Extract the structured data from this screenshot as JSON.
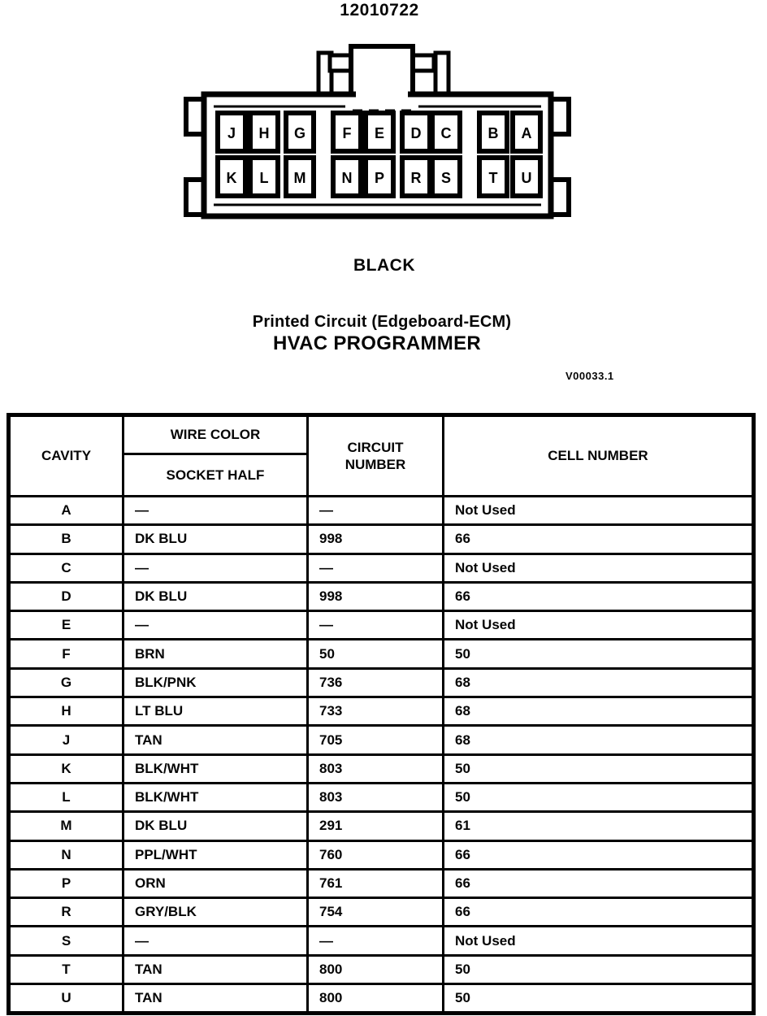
{
  "page": {
    "part_number": "12010722",
    "connector_color": "BLACK",
    "connector_type": "Printed Circuit (Edgeboard-ECM)",
    "connector_name": "HVAC PROGRAMMER",
    "figure_ref": "V00033.1"
  },
  "connector": {
    "top_row": [
      "J",
      "H",
      "G",
      "F",
      "E",
      "D",
      "C",
      "B",
      "A"
    ],
    "bottom_row": [
      "K",
      "L",
      "M",
      "N",
      "P",
      "R",
      "S",
      "T",
      "U"
    ]
  },
  "table": {
    "headers": {
      "cavity": "CAVITY",
      "wire_color": "WIRE COLOR",
      "socket_half": "SOCKET HALF",
      "circuit_number": "CIRCUIT NUMBER",
      "cell_number": "CELL NUMBER"
    },
    "rows": [
      {
        "cavity": "A",
        "wire_color": "—",
        "circuit": "—",
        "cell": "Not Used"
      },
      {
        "cavity": "B",
        "wire_color": "DK BLU",
        "circuit": "998",
        "cell": "66"
      },
      {
        "cavity": "C",
        "wire_color": "—",
        "circuit": "—",
        "cell": "Not Used"
      },
      {
        "cavity": "D",
        "wire_color": "DK BLU",
        "circuit": "998",
        "cell": "66"
      },
      {
        "cavity": "E",
        "wire_color": "—",
        "circuit": "—",
        "cell": "Not Used"
      },
      {
        "cavity": "F",
        "wire_color": "BRN",
        "circuit": "50",
        "cell": "50"
      },
      {
        "cavity": "G",
        "wire_color": "BLK/PNK",
        "circuit": "736",
        "cell": "68"
      },
      {
        "cavity": "H",
        "wire_color": "LT BLU",
        "circuit": "733",
        "cell": "68"
      },
      {
        "cavity": "J",
        "wire_color": "TAN",
        "circuit": "705",
        "cell": "68"
      },
      {
        "cavity": "K",
        "wire_color": "BLK/WHT",
        "circuit": "803",
        "cell": "50"
      },
      {
        "cavity": "L",
        "wire_color": "BLK/WHT",
        "circuit": "803",
        "cell": "50"
      },
      {
        "cavity": "M",
        "wire_color": "DK BLU",
        "circuit": "291",
        "cell": "61"
      },
      {
        "cavity": "N",
        "wire_color": "PPL/WHT",
        "circuit": "760",
        "cell": "66"
      },
      {
        "cavity": "P",
        "wire_color": "ORN",
        "circuit": "761",
        "cell": "66"
      },
      {
        "cavity": "R",
        "wire_color": "GRY/BLK",
        "circuit": "754",
        "cell": "66"
      },
      {
        "cavity": "S",
        "wire_color": "—",
        "circuit": "—",
        "cell": "Not Used"
      },
      {
        "cavity": "T",
        "wire_color": "TAN",
        "circuit": "800",
        "cell": "50"
      },
      {
        "cavity": "U",
        "wire_color": "TAN",
        "circuit": "800",
        "cell": "50"
      }
    ]
  },
  "colors": {
    "ink": "#060606",
    "paper": "#ffffff"
  }
}
